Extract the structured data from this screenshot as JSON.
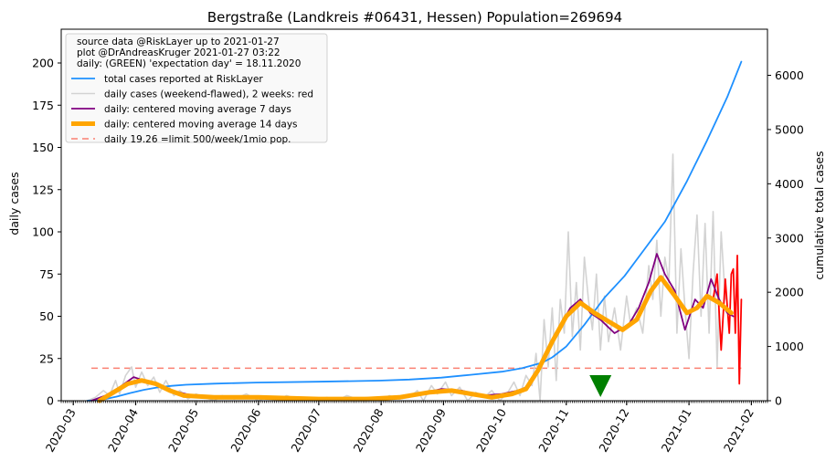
{
  "chart_data": {
    "type": "line",
    "title": "Bergstraße (Landkreis #06431, Hessen) Population=269694",
    "ylabel": "daily cases",
    "ylabel_color": "#800080",
    "y2label": "cumulative total cases",
    "y2label_color": "#1e90ff",
    "ylim": [
      0,
      220
    ],
    "y2lim": [
      0,
      6850
    ],
    "yticks": [
      0,
      25,
      50,
      75,
      100,
      125,
      150,
      175,
      200
    ],
    "y2ticks": [
      0,
      1000,
      2000,
      3000,
      4000,
      5000,
      6000
    ],
    "xlim": [
      "2020-02-24",
      "2021-02-09"
    ],
    "xticks": [
      "2020-03",
      "2020-04",
      "2020-05",
      "2020-06",
      "2020-07",
      "2020-08",
      "2020-09",
      "2020-10",
      "2020-11",
      "2020-12",
      "2021-01",
      "2021-02"
    ],
    "xtick_dates": [
      "2020-03-01",
      "2020-04-01",
      "2020-05-01",
      "2020-06-01",
      "2020-07-01",
      "2020-08-01",
      "2020-09-01",
      "2020-10-01",
      "2020-11-01",
      "2020-12-01",
      "2021-01-01",
      "2021-02-01"
    ],
    "grid": false,
    "legend": {
      "position": "top-left",
      "text_lines": [
        "source data @RiskLayer up to 2021-01-27",
        "plot @DrAndreasKruger 2021-01-27 03:22",
        "daily: (GREEN) 'expectation day' = 18.11.2020"
      ],
      "entries": [
        {
          "label": "total cases reported at RiskLayer",
          "color": "#1e90ff"
        },
        {
          "label": "daily cases (weekend-flawed), 2 weeks: red",
          "color": "#d3d3d3"
        },
        {
          "label": "daily: centered moving average 7 days",
          "color": "#800080"
        },
        {
          "label": "daily: centered moving average 14 days",
          "color": "#ffa500"
        },
        {
          "label": "daily 19.26 =limit 500/week/1mio pop.",
          "color": "#fa8072"
        }
      ]
    },
    "limit_line": {
      "value": 19.26,
      "from": "2020-03-10",
      "to": "2021-01-27",
      "color": "#fa8072"
    },
    "expectation_day": {
      "date": "2020-11-18",
      "color": "#008000"
    },
    "series": [
      {
        "name": "total cases reported at RiskLayer",
        "axis": "right",
        "color": "#1e90ff",
        "points": [
          [
            "2020-03-08",
            0
          ],
          [
            "2020-03-15",
            15
          ],
          [
            "2020-03-22",
            70
          ],
          [
            "2020-03-29",
            140
          ],
          [
            "2020-04-05",
            200
          ],
          [
            "2020-04-12",
            245
          ],
          [
            "2020-04-19",
            275
          ],
          [
            "2020-04-26",
            295
          ],
          [
            "2020-05-10",
            315
          ],
          [
            "2020-05-31",
            335
          ],
          [
            "2020-06-30",
            350
          ],
          [
            "2020-07-31",
            370
          ],
          [
            "2020-08-15",
            390
          ],
          [
            "2020-08-31",
            425
          ],
          [
            "2020-09-15",
            480
          ],
          [
            "2020-09-30",
            535
          ],
          [
            "2020-10-10",
            600
          ],
          [
            "2020-10-20",
            700
          ],
          [
            "2020-10-25",
            800
          ],
          [
            "2020-11-01",
            1000
          ],
          [
            "2020-11-10",
            1400
          ],
          [
            "2020-11-20",
            1900
          ],
          [
            "2020-11-30",
            2300
          ],
          [
            "2020-12-10",
            2800
          ],
          [
            "2020-12-20",
            3300
          ],
          [
            "2020-12-31",
            4050
          ],
          [
            "2021-01-10",
            4800
          ],
          [
            "2021-01-20",
            5600
          ],
          [
            "2021-01-27",
            6250
          ]
        ]
      },
      {
        "name": "daily cases (weekend-flawed), 2 weeks: red",
        "axis": "left",
        "color": "#d3d3d3",
        "points": [
          [
            "2020-03-08",
            0
          ],
          [
            "2020-03-12",
            2
          ],
          [
            "2020-03-16",
            6
          ],
          [
            "2020-03-19",
            3
          ],
          [
            "2020-03-22",
            12
          ],
          [
            "2020-03-24",
            4
          ],
          [
            "2020-03-27",
            15
          ],
          [
            "2020-03-30",
            20
          ],
          [
            "2020-04-01",
            8
          ],
          [
            "2020-04-04",
            17
          ],
          [
            "2020-04-07",
            9
          ],
          [
            "2020-04-10",
            14
          ],
          [
            "2020-04-13",
            5
          ],
          [
            "2020-04-16",
            12
          ],
          [
            "2020-04-20",
            3
          ],
          [
            "2020-04-23",
            6
          ],
          [
            "2020-04-27",
            1
          ],
          [
            "2020-05-01",
            4
          ],
          [
            "2020-05-05",
            2
          ],
          [
            "2020-05-10",
            0
          ],
          [
            "2020-05-14",
            3
          ],
          [
            "2020-05-20",
            1
          ],
          [
            "2020-05-26",
            4
          ],
          [
            "2020-06-01",
            0
          ],
          [
            "2020-06-05",
            2
          ],
          [
            "2020-06-10",
            0
          ],
          [
            "2020-06-15",
            3
          ],
          [
            "2020-06-20",
            1
          ],
          [
            "2020-06-25",
            2
          ],
          [
            "2020-07-01",
            0
          ],
          [
            "2020-07-05",
            2
          ],
          [
            "2020-07-10",
            0
          ],
          [
            "2020-07-15",
            3
          ],
          [
            "2020-07-20",
            1
          ],
          [
            "2020-07-25",
            2
          ],
          [
            "2020-08-01",
            0
          ],
          [
            "2020-08-05",
            3
          ],
          [
            "2020-08-10",
            1
          ],
          [
            "2020-08-15",
            2
          ],
          [
            "2020-08-19",
            6
          ],
          [
            "2020-08-22",
            0
          ],
          [
            "2020-08-26",
            9
          ],
          [
            "2020-08-29",
            4
          ],
          [
            "2020-09-02",
            11
          ],
          [
            "2020-09-05",
            3
          ],
          [
            "2020-09-09",
            8
          ],
          [
            "2020-09-13",
            0
          ],
          [
            "2020-09-17",
            5
          ],
          [
            "2020-09-21",
            2
          ],
          [
            "2020-09-25",
            6
          ],
          [
            "2020-09-29",
            0
          ],
          [
            "2020-10-03",
            5
          ],
          [
            "2020-10-06",
            11
          ],
          [
            "2020-10-09",
            3
          ],
          [
            "2020-10-12",
            15
          ],
          [
            "2020-10-15",
            9
          ],
          [
            "2020-10-17",
            28
          ],
          [
            "2020-10-19",
            0
          ],
          [
            "2020-10-21",
            48
          ],
          [
            "2020-10-23",
            20
          ],
          [
            "2020-10-25",
            55
          ],
          [
            "2020-10-27",
            12
          ],
          [
            "2020-10-29",
            60
          ],
          [
            "2020-10-31",
            40
          ],
          [
            "2020-11-02",
            100
          ],
          [
            "2020-11-04",
            38
          ],
          [
            "2020-11-06",
            70
          ],
          [
            "2020-11-08",
            30
          ],
          [
            "2020-11-10",
            85
          ],
          [
            "2020-11-12",
            60
          ],
          [
            "2020-11-14",
            42
          ],
          [
            "2020-11-16",
            75
          ],
          [
            "2020-11-18",
            30
          ],
          [
            "2020-11-20",
            62
          ],
          [
            "2020-11-22",
            35
          ],
          [
            "2020-11-25",
            55
          ],
          [
            "2020-11-28",
            30
          ],
          [
            "2020-12-01",
            62
          ],
          [
            "2020-12-03",
            45
          ],
          [
            "2020-12-06",
            55
          ],
          [
            "2020-12-09",
            40
          ],
          [
            "2020-12-12",
            80
          ],
          [
            "2020-12-14",
            60
          ],
          [
            "2020-12-16",
            95
          ],
          [
            "2020-12-18",
            50
          ],
          [
            "2020-12-20",
            85
          ],
          [
            "2020-12-22",
            70
          ],
          [
            "2020-12-24",
            146
          ],
          [
            "2020-12-26",
            40
          ],
          [
            "2020-12-28",
            90
          ],
          [
            "2020-12-30",
            55
          ],
          [
            "2021-01-01",
            25
          ],
          [
            "2021-01-03",
            75
          ],
          [
            "2021-01-05",
            110
          ],
          [
            "2021-01-07",
            50
          ],
          [
            "2021-01-09",
            105
          ],
          [
            "2021-01-11",
            40
          ],
          [
            "2021-01-13",
            112
          ],
          [
            "2021-01-15",
            20
          ],
          [
            "2021-01-17",
            100
          ],
          [
            "2021-01-19",
            60
          ]
        ]
      },
      {
        "name": "daily cases, last 2 weeks",
        "axis": "left",
        "color": "#ff0000",
        "points": [
          [
            "2021-01-13",
            60
          ],
          [
            "2021-01-15",
            75
          ],
          [
            "2021-01-17",
            30
          ],
          [
            "2021-01-19",
            72
          ],
          [
            "2021-01-21",
            40
          ],
          [
            "2021-01-22",
            75
          ],
          [
            "2021-01-23",
            78
          ],
          [
            "2021-01-24",
            40
          ],
          [
            "2021-01-25",
            86
          ],
          [
            "2021-01-26",
            10
          ],
          [
            "2021-01-27",
            60
          ]
        ]
      },
      {
        "name": "daily: centered moving average 7 days",
        "axis": "left",
        "color": "#800080",
        "points": [
          [
            "2020-03-10",
            0
          ],
          [
            "2020-03-17",
            3
          ],
          [
            "2020-03-24",
            8
          ],
          [
            "2020-03-31",
            14
          ],
          [
            "2020-04-05",
            12
          ],
          [
            "2020-04-12",
            10
          ],
          [
            "2020-04-19",
            6
          ],
          [
            "2020-04-26",
            4
          ],
          [
            "2020-05-05",
            2
          ],
          [
            "2020-05-20",
            2
          ],
          [
            "2020-06-10",
            2
          ],
          [
            "2020-07-01",
            1
          ],
          [
            "2020-07-20",
            1
          ],
          [
            "2020-08-10",
            2
          ],
          [
            "2020-08-20",
            4
          ],
          [
            "2020-08-31",
            7
          ],
          [
            "2020-09-10",
            6
          ],
          [
            "2020-09-20",
            3
          ],
          [
            "2020-09-30",
            4
          ],
          [
            "2020-10-08",
            6
          ],
          [
            "2020-10-14",
            9
          ],
          [
            "2020-10-20",
            22
          ],
          [
            "2020-10-27",
            40
          ],
          [
            "2020-11-03",
            55
          ],
          [
            "2020-11-08",
            60
          ],
          [
            "2020-11-13",
            52
          ],
          [
            "2020-11-18",
            48
          ],
          [
            "2020-11-25",
            40
          ],
          [
            "2020-12-02",
            45
          ],
          [
            "2020-12-07",
            55
          ],
          [
            "2020-12-12",
            70
          ],
          [
            "2020-12-16",
            87
          ],
          [
            "2020-12-20",
            75
          ],
          [
            "2020-12-25",
            65
          ],
          [
            "2020-12-30",
            42
          ],
          [
            "2021-01-04",
            60
          ],
          [
            "2021-01-08",
            55
          ],
          [
            "2021-01-12",
            72
          ],
          [
            "2021-01-16",
            60
          ],
          [
            "2021-01-20",
            52
          ],
          [
            "2021-01-23",
            50
          ]
        ]
      },
      {
        "name": "daily: centered moving average 14 days",
        "axis": "left",
        "color": "#ffa500",
        "points": [
          [
            "2020-03-14",
            0
          ],
          [
            "2020-03-21",
            5
          ],
          [
            "2020-03-28",
            10
          ],
          [
            "2020-04-04",
            12
          ],
          [
            "2020-04-11",
            10
          ],
          [
            "2020-04-18",
            6
          ],
          [
            "2020-04-25",
            3
          ],
          [
            "2020-05-10",
            2
          ],
          [
            "2020-06-01",
            2
          ],
          [
            "2020-07-01",
            1
          ],
          [
            "2020-07-25",
            1
          ],
          [
            "2020-08-10",
            2
          ],
          [
            "2020-08-25",
            5
          ],
          [
            "2020-09-05",
            6
          ],
          [
            "2020-09-15",
            4
          ],
          [
            "2020-09-25",
            2
          ],
          [
            "2020-10-05",
            4
          ],
          [
            "2020-10-12",
            7
          ],
          [
            "2020-10-18",
            18
          ],
          [
            "2020-10-25",
            35
          ],
          [
            "2020-11-01",
            50
          ],
          [
            "2020-11-08",
            58
          ],
          [
            "2020-11-15",
            52
          ],
          [
            "2020-11-22",
            47
          ],
          [
            "2020-11-29",
            42
          ],
          [
            "2020-12-06",
            48
          ],
          [
            "2020-12-13",
            65
          ],
          [
            "2020-12-18",
            73
          ],
          [
            "2020-12-25",
            62
          ],
          [
            "2020-12-31",
            52
          ],
          [
            "2021-01-05",
            55
          ],
          [
            "2021-01-10",
            62
          ],
          [
            "2021-01-16",
            58
          ],
          [
            "2021-01-22",
            52
          ]
        ]
      }
    ]
  }
}
